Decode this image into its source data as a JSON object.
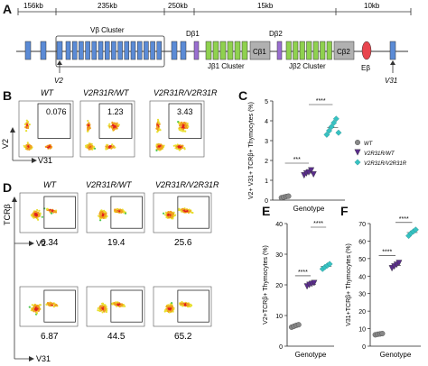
{
  "panels": {
    "A": "A",
    "B": "B",
    "C": "C",
    "D": "D",
    "E": "E",
    "F": "F"
  },
  "map": {
    "distances": [
      "156kb",
      "235kb",
      "250kb",
      "15kb",
      "10kb"
    ],
    "vb_cluster": "Vβ Cluster",
    "db1": "Dβ1",
    "db2": "Dβ2",
    "jb1": "Jβ1 Cluster",
    "jb2": "Jβ2 Cluster",
    "cb1": "Cβ1",
    "cb2": "Cβ2",
    "eb": "Eβ",
    "v2": "V2",
    "v31": "V31",
    "colors": {
      "v_gene": "#5b8bd6",
      "j_gene": "#8fd14f",
      "d_gene": "#9a6fd1",
      "c_gene": "#b0b0b0",
      "enhancer": "#e8454e"
    }
  },
  "flow": {
    "genotypes": [
      "WT",
      "V2R31R/WT",
      "V2R31R/V2R31R"
    ],
    "b_values": [
      "0.076",
      "1.23",
      "3.43"
    ],
    "b_yaxis": "V2",
    "b_xaxis": "V31",
    "d_yaxis": "TCRβ",
    "d_row1_axis": "V2",
    "d_row2_axis": "V31",
    "d_row1_values": [
      "6.34",
      "19.4",
      "25.6"
    ],
    "d_row2_values": [
      "6.87",
      "44.5",
      "65.2"
    ]
  },
  "legend": {
    "items": [
      {
        "label": "WT",
        "color": "#888888",
        "shape": "circle"
      },
      {
        "label": "V2R31R/WT",
        "color": "#5a2d8c",
        "shape": "triangle"
      },
      {
        "label": "V2R31R/V2R31R",
        "color": "#36c2c2",
        "shape": "diamond"
      }
    ]
  },
  "chart_data": [
    {
      "type": "scatter",
      "panel": "C",
      "ylabel": "V2+ V31+ TCRβ+ Thymocytes (%)",
      "xlabel": "Genotype",
      "ylim": [
        0,
        5
      ],
      "yticks": [
        0,
        1,
        2,
        3,
        4,
        5
      ],
      "significance": [
        "***",
        "****"
      ],
      "series": [
        {
          "name": "WT",
          "values": [
            0.12,
            0.15,
            0.18,
            0.2
          ]
        },
        {
          "name": "V2R31R/WT",
          "values": [
            1.25,
            1.35,
            1.4,
            1.5,
            1.3
          ]
        },
        {
          "name": "V2R31R/V2R31R",
          "values": [
            3.3,
            3.5,
            3.7,
            3.9,
            4.1,
            3.4
          ]
        }
      ]
    },
    {
      "type": "scatter",
      "panel": "E",
      "ylabel": "V2+TCRβ+ Thymocytes (%)",
      "xlabel": "Genotype",
      "ylim": [
        0,
        40
      ],
      "yticks": [
        0,
        10,
        20,
        30,
        40
      ],
      "significance": [
        "****",
        "****"
      ],
      "series": [
        {
          "name": "WT",
          "values": [
            6.2,
            6.5,
            6.8,
            7.0
          ]
        },
        {
          "name": "V2R31R/WT",
          "values": [
            19.5,
            20.0,
            20.3,
            20.6
          ]
        },
        {
          "name": "V2R31R/V2R31R",
          "values": [
            25.2,
            25.8,
            26.3,
            26.8
          ]
        }
      ]
    },
    {
      "type": "scatter",
      "panel": "F",
      "ylabel": "V31+TCRβ+ Thymocytes (%)",
      "xlabel": "Genotype",
      "ylim": [
        0,
        70
      ],
      "yticks": [
        0,
        10,
        20,
        30,
        40,
        50,
        60,
        70
      ],
      "significance": [
        "****",
        "****"
      ],
      "series": [
        {
          "name": "WT",
          "values": [
            6.5,
            6.8,
            7.0,
            7.2
          ]
        },
        {
          "name": "V2R31R/WT",
          "values": [
            44.5,
            45.5,
            46.5,
            47.5
          ]
        },
        {
          "name": "V2R31R/V2R31R",
          "values": [
            63.0,
            64.5,
            65.5,
            66.5
          ]
        }
      ]
    }
  ]
}
